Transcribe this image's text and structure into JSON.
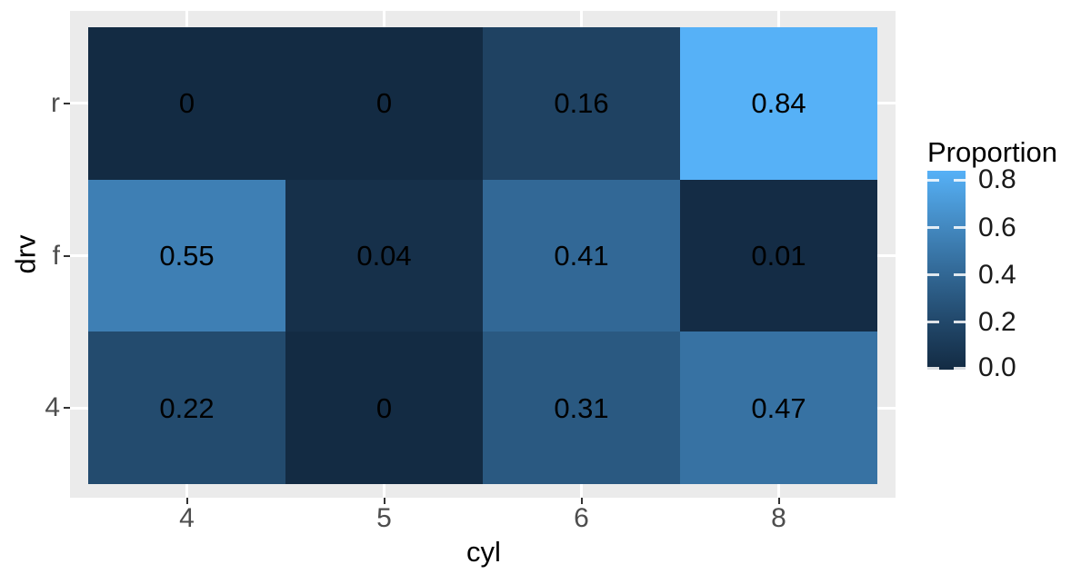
{
  "chart_data": {
    "type": "heatmap",
    "title": "",
    "xlabel": "cyl",
    "ylabel": "drv",
    "x_categories": [
      "4",
      "5",
      "6",
      "8"
    ],
    "y_categories": [
      "r",
      "f",
      "4"
    ],
    "values": [
      [
        0,
        0,
        0.16,
        0.84
      ],
      [
        0.55,
        0.04,
        0.41,
        0.01
      ],
      [
        0.22,
        0,
        0.31,
        0.47
      ]
    ],
    "labels": [
      [
        "0",
        "0",
        "0.16",
        "0.84"
      ],
      [
        "0.55",
        "0.04",
        "0.41",
        "0.01"
      ],
      [
        "0.22",
        "0",
        "0.31",
        "0.47"
      ]
    ],
    "cell_colors": [
      [
        "#132B43",
        "#132B43",
        "#1F4262",
        "#56B1F7"
      ],
      [
        "#3E7FB4",
        "#16304A",
        "#326896",
        "#142C45"
      ],
      [
        "#234B6E",
        "#132B43",
        "#2A5981",
        "#3772A3"
      ]
    ],
    "legend": {
      "title": "Proportion",
      "position": "right",
      "tick_labels": [
        "0.8",
        "0.6",
        "0.4",
        "0.2",
        "0.0"
      ],
      "tick_values": [
        0.8,
        0.6,
        0.4,
        0.2,
        0.0
      ],
      "range": [
        0,
        0.84
      ],
      "gradient_low": "#132B43",
      "gradient_high": "#56B1F7"
    },
    "grid": true
  },
  "colors": {
    "background": "#FFFFFF",
    "panel_bg": "#EBEBEB",
    "gridline": "#FFFFFF",
    "tick_mark": "#333333",
    "axis_text": "#4D4D4D",
    "title_text": "#000000"
  }
}
